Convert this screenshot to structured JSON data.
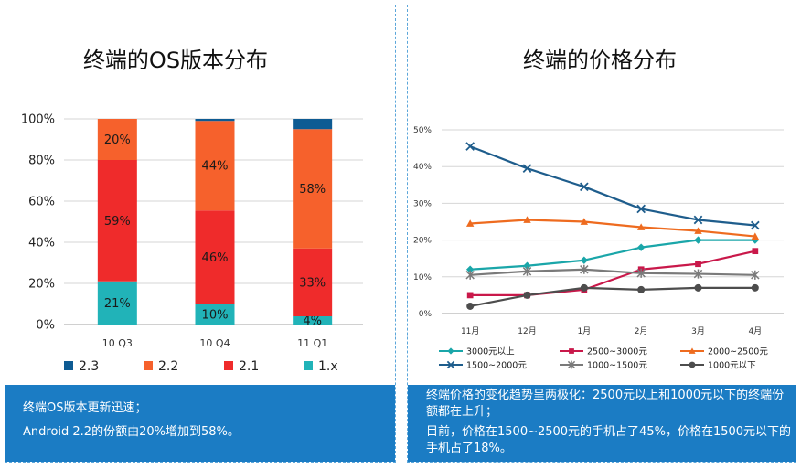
{
  "theme": {
    "panel_border": "#5ba6da",
    "note_background": "#1b7cc4",
    "note_text": "#ffffff"
  },
  "left_panel": {
    "notes": [
      "终端OS版本更新迅速；",
      "Android 2.2的份额由20%增加到58%。"
    ]
  },
  "right_panel": {
    "notes": [
      "终端价格的变化趋势呈两极化：2500元以上和1000元以下的终端份额都在上升；",
      "目前，价格在1500~2500元的手机占了45%，价格在1500元以下的手机占了18%。"
    ]
  },
  "chart_data": [
    {
      "type": "bar",
      "stacking": "percent",
      "title": "终端的OS版本分布",
      "categories": [
        "10 Q3",
        "10 Q4",
        "11 Q1"
      ],
      "ylim": [
        0,
        100
      ],
      "yticks": [
        {
          "value": 0,
          "label": "0%"
        },
        {
          "value": 20,
          "label": "20%"
        },
        {
          "value": 40,
          "label": "40%"
        },
        {
          "value": 60,
          "label": "60%"
        },
        {
          "value": 80,
          "label": "80%"
        },
        {
          "value": 100,
          "label": "100%"
        }
      ],
      "grid": true,
      "legend": "bottom",
      "legend_order": [
        "2.3",
        "2.2",
        "2.1",
        "1.x"
      ],
      "series": [
        {
          "name": "1.x",
          "color": "#21b3b8",
          "values": [
            21,
            10,
            4
          ],
          "labels": [
            "21%",
            "10%",
            "4%"
          ]
        },
        {
          "name": "2.1",
          "color": "#ef2b2b",
          "values": [
            59,
            46,
            33
          ],
          "labels": [
            "59%",
            "46%",
            "33%"
          ]
        },
        {
          "name": "2.2",
          "color": "#f6612c",
          "values": [
            20,
            44,
            58
          ],
          "labels": [
            "20%",
            "44%",
            "58%"
          ]
        },
        {
          "name": "2.3",
          "color": "#0e5b93",
          "values": [
            0,
            1,
            5
          ]
        }
      ]
    },
    {
      "type": "line",
      "title": "终端的价格分布",
      "categories": [
        "11月",
        "12月",
        "1月",
        "2月",
        "3月",
        "4月"
      ],
      "ylim": [
        0,
        50
      ],
      "yticks": [
        {
          "value": 0,
          "label": "0%"
        },
        {
          "value": 10,
          "label": "10%"
        },
        {
          "value": 20,
          "label": "20%"
        },
        {
          "value": 30,
          "label": "30%"
        },
        {
          "value": 40,
          "label": "40%"
        },
        {
          "value": 50,
          "label": "50%"
        }
      ],
      "grid": true,
      "legend": "bottom",
      "series": [
        {
          "name": "3000元以上",
          "color": "#1aa6a9",
          "marker": "diamond",
          "values": [
            12,
            13,
            14.5,
            18,
            20,
            20
          ]
        },
        {
          "name": "2500~3000元",
          "color": "#c9184a",
          "marker": "square",
          "values": [
            5,
            5,
            6.5,
            12,
            13.5,
            17
          ]
        },
        {
          "name": "2000~2500元",
          "color": "#ee6b1f",
          "marker": "triangle",
          "values": [
            24.5,
            25.5,
            25,
            23.5,
            22.5,
            21
          ]
        },
        {
          "name": "1500~2000元",
          "color": "#1e5d8c",
          "marker": "x",
          "values": [
            45.5,
            39.5,
            34.5,
            28.5,
            25.5,
            24
          ]
        },
        {
          "name": "1000~1500元",
          "color": "#7a7a7a",
          "marker": "asterisk",
          "values": [
            10.5,
            11.5,
            12,
            11,
            10.8,
            10.5
          ]
        },
        {
          "name": "1000元以下",
          "color": "#4d4d4d",
          "marker": "circle",
          "values": [
            2,
            5,
            7,
            6.5,
            7,
            7
          ]
        }
      ]
    }
  ]
}
